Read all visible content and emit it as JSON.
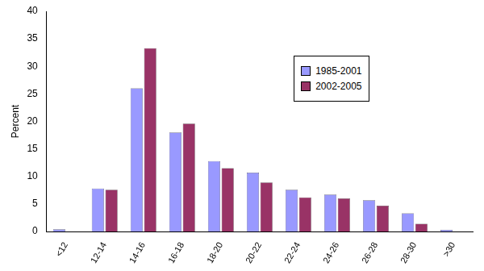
{
  "chart_data": {
    "type": "bar",
    "y_label": "Percent",
    "categories": [
      "<12",
      "12-14",
      "14-16",
      "16-18",
      "18-20",
      "20-22",
      "22-24",
      "24-26",
      "26-28",
      "28-30",
      ">30"
    ],
    "series": [
      {
        "name": "1985-2001",
        "color": "#9999ff",
        "values": [
          0.4,
          7.8,
          26,
          18,
          12.8,
          10.7,
          7.6,
          6.7,
          5.7,
          3.3,
          0.3
        ]
      },
      {
        "name": "2002-2005",
        "color": "#993366",
        "values": [
          0,
          7.6,
          33.3,
          19.6,
          11.5,
          8.9,
          6.2,
          6.0,
          4.7,
          1.4,
          0
        ]
      }
    ],
    "ylim": [
      0,
      40
    ],
    "yticks": [
      0,
      5,
      10,
      15,
      20,
      25,
      30,
      35,
      40
    ],
    "grid": false,
    "legend": "upper right"
  }
}
